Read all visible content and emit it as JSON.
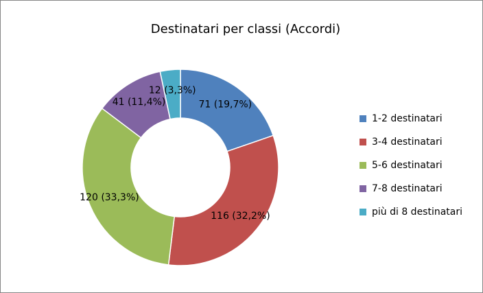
{
  "chart_data": {
    "type": "donut",
    "title": "Destinatari per classi (Accordi)",
    "categories": [
      "1-2 destinatari",
      "3-4 destinatari",
      "5-6 destinatari",
      "7-8 destinatari",
      "più di 8 destinatari"
    ],
    "values": [
      71,
      116,
      120,
      41,
      12
    ],
    "value_labels": [
      "71 (19,7%)",
      "116 (32,2%)",
      "120 (33,3%)",
      "41 (11,4%)",
      "12 (3,3%)"
    ],
    "colors": [
      "#4f81bd",
      "#c0504d",
      "#9bbb59",
      "#8064a2",
      "#4bacc6"
    ],
    "legend": "right"
  }
}
